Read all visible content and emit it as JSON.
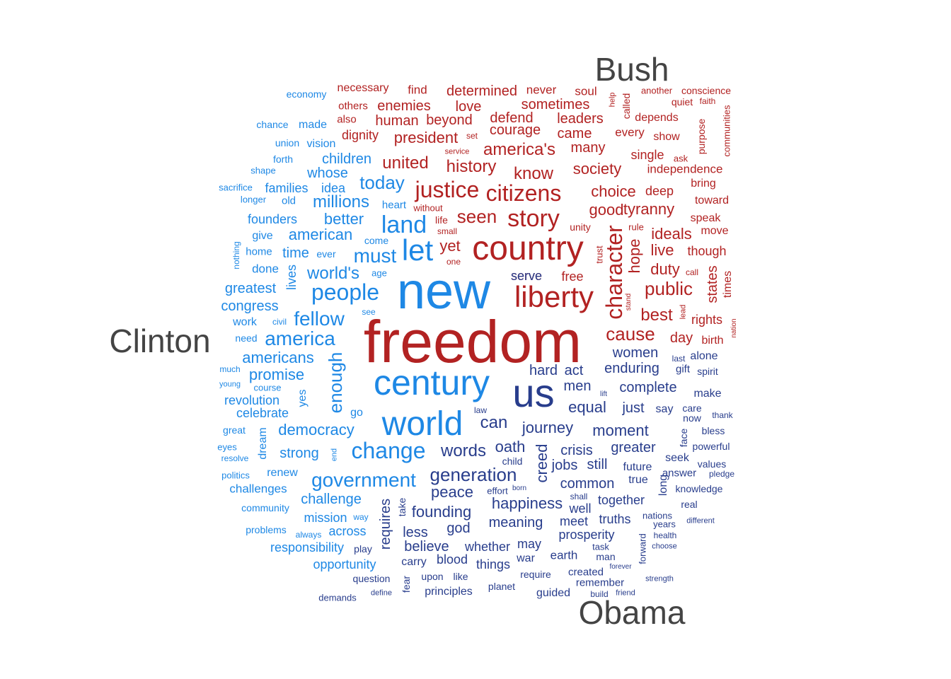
{
  "groups": {
    "bush": {
      "label": "Bush",
      "color": "#b22222"
    },
    "clinton": {
      "label": "Clinton",
      "color": "#1e88e5"
    },
    "obama": {
      "label": "Obama",
      "color": "#283d8c"
    }
  },
  "label_color": "#444444",
  "words": [
    {
      "t": "freedom",
      "g": "bush"
    },
    {
      "t": "country",
      "g": "bush"
    },
    {
      "t": "liberty",
      "g": "bush"
    },
    {
      "t": "story",
      "g": "bush"
    },
    {
      "t": "citizens",
      "g": "bush"
    },
    {
      "t": "justice",
      "g": "bush"
    },
    {
      "t": "character",
      "g": "bush"
    },
    {
      "t": "america's",
      "g": "bush"
    },
    {
      "t": "history",
      "g": "bush"
    },
    {
      "t": "know",
      "g": "bush"
    },
    {
      "t": "seen",
      "g": "bush"
    },
    {
      "t": "united",
      "g": "bush"
    },
    {
      "t": "society",
      "g": "bush"
    },
    {
      "t": "choice",
      "g": "bush"
    },
    {
      "t": "good",
      "g": "bush"
    },
    {
      "t": "tyranny",
      "g": "bush"
    },
    {
      "t": "public",
      "g": "bush"
    },
    {
      "t": "cause",
      "g": "bush"
    },
    {
      "t": "best",
      "g": "bush"
    },
    {
      "t": "duty",
      "g": "bush"
    },
    {
      "t": "hope",
      "g": "bush"
    },
    {
      "t": "ideals",
      "g": "bush"
    },
    {
      "t": "live",
      "g": "bush"
    },
    {
      "t": "yet",
      "g": "bush"
    },
    {
      "t": "president",
      "g": "bush"
    },
    {
      "t": "human",
      "g": "bush"
    },
    {
      "t": "beyond",
      "g": "bush"
    },
    {
      "t": "enemies",
      "g": "bush"
    },
    {
      "t": "determined",
      "g": "bush"
    },
    {
      "t": "sometimes",
      "g": "bush"
    },
    {
      "t": "leaders",
      "g": "bush"
    },
    {
      "t": "courage",
      "g": "bush"
    },
    {
      "t": "defend",
      "g": "bush"
    },
    {
      "t": "came",
      "g": "bush"
    },
    {
      "t": "many",
      "g": "bush"
    },
    {
      "t": "love",
      "g": "bush"
    },
    {
      "t": "dignity",
      "g": "bush"
    },
    {
      "t": "necessary",
      "g": "bush"
    },
    {
      "t": "find",
      "g": "bush"
    },
    {
      "t": "never",
      "g": "bush"
    },
    {
      "t": "soul",
      "g": "bush"
    },
    {
      "t": "others",
      "g": "bush"
    },
    {
      "t": "also",
      "g": "bush"
    },
    {
      "t": "every",
      "g": "bush"
    },
    {
      "t": "depends",
      "g": "bush"
    },
    {
      "t": "single",
      "g": "bush"
    },
    {
      "t": "independence",
      "g": "bush"
    },
    {
      "t": "deep",
      "g": "bush"
    },
    {
      "t": "bring",
      "g": "bush"
    },
    {
      "t": "toward",
      "g": "bush"
    },
    {
      "t": "speak",
      "g": "bush"
    },
    {
      "t": "move",
      "g": "bush"
    },
    {
      "t": "though",
      "g": "bush"
    },
    {
      "t": "states",
      "g": "bush"
    },
    {
      "t": "times",
      "g": "bush"
    },
    {
      "t": "rights",
      "g": "bush"
    },
    {
      "t": "birth",
      "g": "bush"
    },
    {
      "t": "day",
      "g": "bush"
    },
    {
      "t": "serve",
      "g": "bush"
    },
    {
      "t": "free",
      "g": "bush"
    },
    {
      "t": "another",
      "g": "bush"
    },
    {
      "t": "conscience",
      "g": "bush"
    },
    {
      "t": "quiet",
      "g": "bush"
    },
    {
      "t": "faith",
      "g": "bush"
    },
    {
      "t": "called",
      "g": "bush"
    },
    {
      "t": "help",
      "g": "bush"
    },
    {
      "t": "show",
      "g": "bush"
    },
    {
      "t": "purpose",
      "g": "bush"
    },
    {
      "t": "communities",
      "g": "bush"
    },
    {
      "t": "ask",
      "g": "bush"
    },
    {
      "t": "set",
      "g": "bush"
    },
    {
      "t": "service",
      "g": "bush"
    },
    {
      "t": "without",
      "g": "bush"
    },
    {
      "t": "life",
      "g": "bush"
    },
    {
      "t": "small",
      "g": "bush"
    },
    {
      "t": "one",
      "g": "bush"
    },
    {
      "t": "unity",
      "g": "bush"
    },
    {
      "t": "rule",
      "g": "bush"
    },
    {
      "t": "trust",
      "g": "bush"
    },
    {
      "t": "stand",
      "g": "bush"
    },
    {
      "t": "call",
      "g": "bush"
    },
    {
      "t": "lead",
      "g": "bush"
    },
    {
      "t": "nation",
      "g": "bush"
    },
    {
      "t": "new",
      "g": "clinton"
    },
    {
      "t": "century",
      "g": "clinton"
    },
    {
      "t": "world",
      "g": "clinton"
    },
    {
      "t": "let",
      "g": "clinton"
    },
    {
      "t": "land",
      "g": "clinton"
    },
    {
      "t": "people",
      "g": "clinton"
    },
    {
      "t": "change",
      "g": "clinton"
    },
    {
      "t": "must",
      "g": "clinton"
    },
    {
      "t": "america",
      "g": "clinton"
    },
    {
      "t": "fellow",
      "g": "clinton"
    },
    {
      "t": "government",
      "g": "clinton"
    },
    {
      "t": "today",
      "g": "clinton"
    },
    {
      "t": "millions",
      "g": "clinton"
    },
    {
      "t": "world's",
      "g": "clinton"
    },
    {
      "t": "american",
      "g": "clinton"
    },
    {
      "t": "better",
      "g": "clinton"
    },
    {
      "t": "enough",
      "g": "clinton"
    },
    {
      "t": "democracy",
      "g": "clinton"
    },
    {
      "t": "americans",
      "g": "clinton"
    },
    {
      "t": "promise",
      "g": "clinton"
    },
    {
      "t": "children",
      "g": "clinton"
    },
    {
      "t": "whose",
      "g": "clinton"
    },
    {
      "t": "idea",
      "g": "clinton"
    },
    {
      "t": "families",
      "g": "clinton"
    },
    {
      "t": "founders",
      "g": "clinton"
    },
    {
      "t": "time",
      "g": "clinton"
    },
    {
      "t": "greatest",
      "g": "clinton"
    },
    {
      "t": "congress",
      "g": "clinton"
    },
    {
      "t": "lives",
      "g": "clinton"
    },
    {
      "t": "revolution",
      "g": "clinton"
    },
    {
      "t": "celebrate",
      "g": "clinton"
    },
    {
      "t": "strong",
      "g": "clinton"
    },
    {
      "t": "challenge",
      "g": "clinton"
    },
    {
      "t": "mission",
      "g": "clinton"
    },
    {
      "t": "across",
      "g": "clinton"
    },
    {
      "t": "responsibility",
      "g": "clinton"
    },
    {
      "t": "opportunity",
      "g": "clinton"
    },
    {
      "t": "challenges",
      "g": "clinton"
    },
    {
      "t": "renew",
      "g": "clinton"
    },
    {
      "t": "work",
      "g": "clinton"
    },
    {
      "t": "done",
      "g": "clinton"
    },
    {
      "t": "yes",
      "g": "clinton"
    },
    {
      "t": "go",
      "g": "clinton"
    },
    {
      "t": "dream",
      "g": "clinton"
    },
    {
      "t": "economy",
      "g": "clinton"
    },
    {
      "t": "made",
      "g": "clinton"
    },
    {
      "t": "chance",
      "g": "clinton"
    },
    {
      "t": "union",
      "g": "clinton"
    },
    {
      "t": "vision",
      "g": "clinton"
    },
    {
      "t": "forth",
      "g": "clinton"
    },
    {
      "t": "shape",
      "g": "clinton"
    },
    {
      "t": "sacrifice",
      "g": "clinton"
    },
    {
      "t": "longer",
      "g": "clinton"
    },
    {
      "t": "old",
      "g": "clinton"
    },
    {
      "t": "heart",
      "g": "clinton"
    },
    {
      "t": "give",
      "g": "clinton"
    },
    {
      "t": "come",
      "g": "clinton"
    },
    {
      "t": "home",
      "g": "clinton"
    },
    {
      "t": "ever",
      "g": "clinton"
    },
    {
      "t": "nothing",
      "g": "clinton"
    },
    {
      "t": "age",
      "g": "clinton"
    },
    {
      "t": "see",
      "g": "clinton"
    },
    {
      "t": "need",
      "g": "clinton"
    },
    {
      "t": "civil",
      "g": "clinton"
    },
    {
      "t": "much",
      "g": "clinton"
    },
    {
      "t": "young",
      "g": "clinton"
    },
    {
      "t": "course",
      "g": "clinton"
    },
    {
      "t": "great",
      "g": "clinton"
    },
    {
      "t": "eyes",
      "g": "clinton"
    },
    {
      "t": "resolve",
      "g": "clinton"
    },
    {
      "t": "end",
      "g": "clinton"
    },
    {
      "t": "politics",
      "g": "clinton"
    },
    {
      "t": "community",
      "g": "clinton"
    },
    {
      "t": "problems",
      "g": "clinton"
    },
    {
      "t": "always",
      "g": "clinton"
    },
    {
      "t": "way",
      "g": "clinton"
    },
    {
      "t": "us",
      "g": "obama"
    },
    {
      "t": "can",
      "g": "obama"
    },
    {
      "t": "words",
      "g": "obama"
    },
    {
      "t": "generation",
      "g": "obama"
    },
    {
      "t": "oath",
      "g": "obama"
    },
    {
      "t": "journey",
      "g": "obama"
    },
    {
      "t": "creed",
      "g": "obama"
    },
    {
      "t": "peace",
      "g": "obama"
    },
    {
      "t": "founding",
      "g": "obama"
    },
    {
      "t": "happiness",
      "g": "obama"
    },
    {
      "t": "equal",
      "g": "obama"
    },
    {
      "t": "moment",
      "g": "obama"
    },
    {
      "t": "hard",
      "g": "obama"
    },
    {
      "t": "act",
      "g": "obama"
    },
    {
      "t": "men",
      "g": "obama"
    },
    {
      "t": "enduring",
      "g": "obama"
    },
    {
      "t": "complete",
      "g": "obama"
    },
    {
      "t": "women",
      "g": "obama"
    },
    {
      "t": "just",
      "g": "obama"
    },
    {
      "t": "say",
      "g": "obama"
    },
    {
      "t": "crisis",
      "g": "obama"
    },
    {
      "t": "greater",
      "g": "obama"
    },
    {
      "t": "jobs",
      "g": "obama"
    },
    {
      "t": "still",
      "g": "obama"
    },
    {
      "t": "common",
      "g": "obama"
    },
    {
      "t": "meaning",
      "g": "obama"
    },
    {
      "t": "requires",
      "g": "obama"
    },
    {
      "t": "less",
      "g": "obama"
    },
    {
      "t": "god",
      "g": "obama"
    },
    {
      "t": "believe",
      "g": "obama"
    },
    {
      "t": "whether",
      "g": "obama"
    },
    {
      "t": "may",
      "g": "obama"
    },
    {
      "t": "prosperity",
      "g": "obama"
    },
    {
      "t": "meet",
      "g": "obama"
    },
    {
      "t": "truths",
      "g": "obama"
    },
    {
      "t": "together",
      "g": "obama"
    },
    {
      "t": "well",
      "g": "obama"
    },
    {
      "t": "future",
      "g": "obama"
    },
    {
      "t": "true",
      "g": "obama"
    },
    {
      "t": "seek",
      "g": "obama"
    },
    {
      "t": "answer",
      "g": "obama"
    },
    {
      "t": "long",
      "g": "obama"
    },
    {
      "t": "face",
      "g": "obama"
    },
    {
      "t": "make",
      "g": "obama"
    },
    {
      "t": "care",
      "g": "obama"
    },
    {
      "t": "now",
      "g": "obama"
    },
    {
      "t": "alone",
      "g": "obama"
    },
    {
      "t": "gift",
      "g": "obama"
    },
    {
      "t": "spirit",
      "g": "obama"
    },
    {
      "t": "last",
      "g": "obama"
    },
    {
      "t": "thank",
      "g": "obama"
    },
    {
      "t": "bless",
      "g": "obama"
    },
    {
      "t": "powerful",
      "g": "obama"
    },
    {
      "t": "values",
      "g": "obama"
    },
    {
      "t": "pledge",
      "g": "obama"
    },
    {
      "t": "knowledge",
      "g": "obama"
    },
    {
      "t": "real",
      "g": "obama"
    },
    {
      "t": "nations",
      "g": "obama"
    },
    {
      "t": "years",
      "g": "obama"
    },
    {
      "t": "different",
      "g": "obama"
    },
    {
      "t": "health",
      "g": "obama"
    },
    {
      "t": "choose",
      "g": "obama"
    },
    {
      "t": "strength",
      "g": "obama"
    },
    {
      "t": "forward",
      "g": "obama"
    },
    {
      "t": "forever",
      "g": "obama"
    },
    {
      "t": "friend",
      "g": "obama"
    },
    {
      "t": "build",
      "g": "obama"
    },
    {
      "t": "task",
      "g": "obama"
    },
    {
      "t": "man",
      "g": "obama"
    },
    {
      "t": "earth",
      "g": "obama"
    },
    {
      "t": "created",
      "g": "obama"
    },
    {
      "t": "remember",
      "g": "obama"
    },
    {
      "t": "guided",
      "g": "obama"
    },
    {
      "t": "require",
      "g": "obama"
    },
    {
      "t": "war",
      "g": "obama"
    },
    {
      "t": "things",
      "g": "obama"
    },
    {
      "t": "blood",
      "g": "obama"
    },
    {
      "t": "carry",
      "g": "obama"
    },
    {
      "t": "like",
      "g": "obama"
    },
    {
      "t": "upon",
      "g": "obama"
    },
    {
      "t": "principles",
      "g": "obama"
    },
    {
      "t": "planet",
      "g": "obama"
    },
    {
      "t": "question",
      "g": "obama"
    },
    {
      "t": "fear",
      "g": "obama"
    },
    {
      "t": "demands",
      "g": "obama"
    },
    {
      "t": "define",
      "g": "obama"
    },
    {
      "t": "play",
      "g": "obama"
    },
    {
      "t": "take",
      "g": "obama"
    },
    {
      "t": "serve",
      "g": "obama"
    },
    {
      "t": "shall",
      "g": "obama"
    },
    {
      "t": "born",
      "g": "obama"
    },
    {
      "t": "effort",
      "g": "obama"
    },
    {
      "t": "child",
      "g": "obama"
    },
    {
      "t": "law",
      "g": "obama"
    },
    {
      "t": "lift",
      "g": "obama"
    }
  ]
}
